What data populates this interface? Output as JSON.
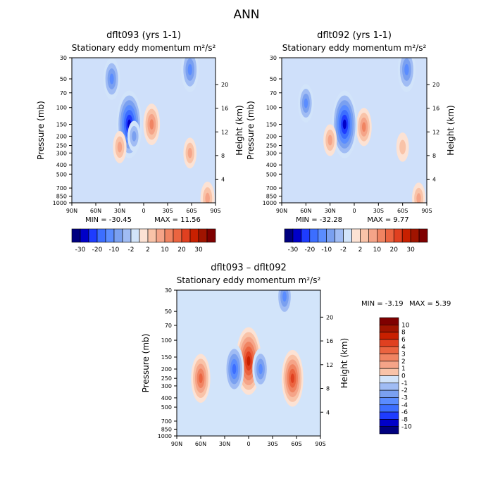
{
  "figure_title": "ANN",
  "chart_data": [
    {
      "type": "heatmap",
      "title": "dflt093 (yrs 1-1)",
      "subtitle": "Stationary eddy momentum",
      "units": "m²/s²",
      "xlabel": "",
      "ylabel_left": "Pressure (mb)",
      "ylabel_right": "Height (km)",
      "x_ticks": [
        "90N",
        "60N",
        "30N",
        "0",
        "30S",
        "60S",
        "90S"
      ],
      "x_range": [
        90,
        -90
      ],
      "y_ticks_left": [
        30,
        50,
        70,
        100,
        150,
        200,
        250,
        300,
        400,
        500,
        700,
        850,
        1000
      ],
      "y_ticks_right": [
        20,
        16,
        12,
        8,
        4
      ],
      "min_label": "MIN = -30.45",
      "max_label": "MAX = 11.56",
      "min": -30.45,
      "max": 11.56,
      "colorbar_levels": [
        "-30",
        "-20",
        "-10",
        "-2",
        "2",
        "10",
        "20",
        "30"
      ],
      "features": [
        {
          "lat": -10,
          "p": 150,
          "value": 11.56
        },
        {
          "lat": 18,
          "p": 150,
          "value": -30.45
        },
        {
          "lat": 40,
          "p": 50,
          "value": -12
        },
        {
          "lat": -58,
          "p": 40,
          "value": -14
        },
        {
          "lat": 12,
          "p": 200,
          "value": -4
        },
        {
          "lat": 30,
          "p": 260,
          "value": 5
        },
        {
          "lat": -58,
          "p": 300,
          "value": 4
        },
        {
          "lat": -80,
          "p": 900,
          "value": 6
        }
      ]
    },
    {
      "type": "heatmap",
      "title": "dflt092 (yrs 1-1)",
      "subtitle": "Stationary eddy momentum",
      "units": "m²/s²",
      "xlabel": "",
      "ylabel_left": "Pressure (mb)",
      "ylabel_right": "Height (km)",
      "x_ticks": [
        "90N",
        "60N",
        "30N",
        "0",
        "30S",
        "60S",
        "90S"
      ],
      "x_range": [
        90,
        -90
      ],
      "y_ticks_left": [
        30,
        50,
        70,
        100,
        150,
        200,
        250,
        300,
        400,
        500,
        700,
        850,
        1000
      ],
      "y_ticks_right": [
        20,
        16,
        12,
        8,
        4
      ],
      "min_label": "MIN = -32.28",
      "max_label": "MAX = 9.77",
      "min": -32.28,
      "max": 9.77,
      "colorbar_levels": [
        "-30",
        "-20",
        "-10",
        "-2",
        "2",
        "10",
        "20",
        "30"
      ],
      "features": [
        {
          "lat": -12,
          "p": 160,
          "value": 9.77
        },
        {
          "lat": 12,
          "p": 150,
          "value": -32.28
        },
        {
          "lat": 60,
          "p": 90,
          "value": -10
        },
        {
          "lat": -65,
          "p": 40,
          "value": -15
        },
        {
          "lat": 30,
          "p": 220,
          "value": 5
        },
        {
          "lat": -60,
          "p": 260,
          "value": 3
        },
        {
          "lat": -80,
          "p": 900,
          "value": 5
        }
      ]
    },
    {
      "type": "heatmap",
      "title": "dflt093 – dflt092",
      "subtitle": "Stationary eddy momentum",
      "units": "m²/s²",
      "xlabel": "",
      "ylabel_left": "Pressure (mb)",
      "ylabel_right": "Height (km)",
      "x_ticks": [
        "90N",
        "60N",
        "30N",
        "0",
        "30S",
        "60S",
        "90S"
      ],
      "x_range": [
        90,
        -90
      ],
      "y_ticks_left": [
        30,
        50,
        70,
        100,
        150,
        200,
        250,
        300,
        400,
        500,
        700,
        850,
        1000
      ],
      "y_ticks_right": [
        20,
        16,
        12,
        8,
        4
      ],
      "min_label": "MIN = -3.19",
      "max_label": "MAX = 5.39",
      "min": -3.19,
      "max": 5.39,
      "colorbar_levels": [
        "10",
        "8",
        "6",
        "4",
        "3",
        "2",
        "1",
        "0",
        "-1",
        "-2",
        "-3",
        "-4",
        "-6",
        "-8",
        "-10"
      ],
      "features": [
        {
          "lat": 0,
          "p": 165,
          "value": 5.39
        },
        {
          "lat": 60,
          "p": 250,
          "value": 3
        },
        {
          "lat": 18,
          "p": 200,
          "value": -3.19
        },
        {
          "lat": -55,
          "p": 250,
          "value": 4
        },
        {
          "lat": -15,
          "p": 200,
          "value": -2
        },
        {
          "lat": -45,
          "p": 35,
          "value": -2
        }
      ]
    }
  ],
  "colors": {
    "negative": [
      "#00007f",
      "#0000c8",
      "#1e3cff",
      "#3c6eff",
      "#5a8cff",
      "#7aa0f0",
      "#a0bcf4",
      "#d2e4fa"
    ],
    "positive": [
      "#fce2d4",
      "#f9c3a8",
      "#f5a488",
      "#f08462",
      "#eb6440",
      "#e04020",
      "#c82000",
      "#a01400",
      "#7f0000"
    ],
    "neutral": "#ffffff",
    "axis": "#000000"
  }
}
